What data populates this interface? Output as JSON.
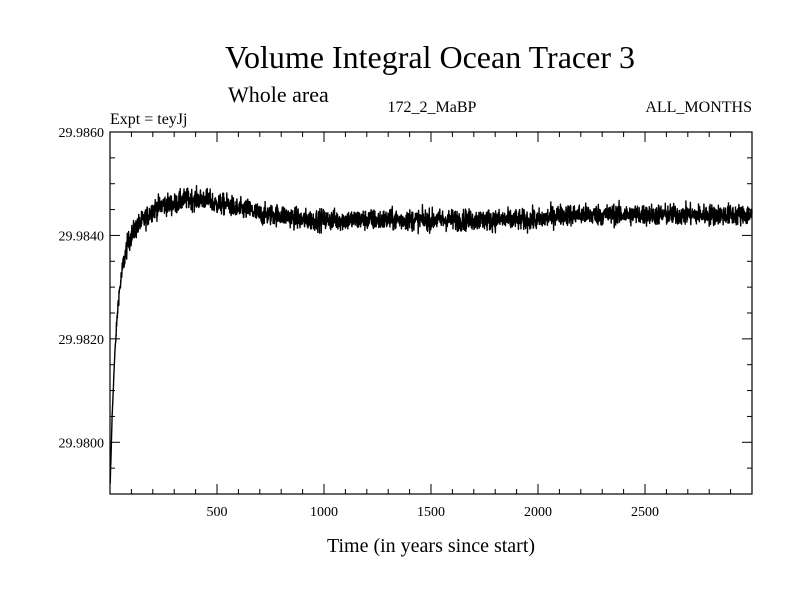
{
  "chart_data": {
    "type": "line",
    "title": "Volume Integral Ocean Tracer 3",
    "subtitle": "Whole area",
    "experiment_label": "Expt = teyJj",
    "run_label": "172_2_MaBP",
    "months_label": "ALL_MONTHS",
    "xlabel": "Time (in years since start)",
    "ylabel": "",
    "xlim": [
      0,
      3000
    ],
    "ylim": [
      29.979,
      29.986
    ],
    "x_ticks": [
      500,
      1000,
      1500,
      2000,
      2500
    ],
    "x_tick_labels": [
      "500",
      "1000",
      "1500",
      "2000",
      "2500"
    ],
    "y_ticks": [
      29.98,
      29.982,
      29.984,
      29.986
    ],
    "y_tick_labels": [
      "29.9800",
      "29.9820",
      "29.9840",
      "29.9860"
    ],
    "grid": false,
    "series": [
      {
        "color": "#000000",
        "x": [
          1,
          10,
          20,
          30,
          40,
          60,
          80,
          100,
          130,
          160,
          200,
          250,
          300,
          350,
          400,
          450,
          500,
          550,
          600,
          650,
          700,
          800,
          900,
          1000,
          1100,
          1200,
          1300,
          1400,
          1500,
          1600,
          1700,
          1800,
          1900,
          2000,
          2100,
          2200,
          2300,
          2400,
          2500,
          2600,
          2700,
          2800,
          2900,
          3000
        ],
        "values": [
          29.9792,
          29.9805,
          29.9815,
          29.9822,
          29.9828,
          29.9834,
          29.9838,
          29.984,
          29.9842,
          29.9843,
          29.9845,
          29.9846,
          29.9846,
          29.9847,
          29.9847,
          29.9847,
          29.9846,
          29.9846,
          29.9845,
          29.9845,
          29.9844,
          29.9844,
          29.9843,
          29.9843,
          29.9843,
          29.9843,
          29.9843,
          29.9843,
          29.9843,
          29.9843,
          29.9843,
          29.9843,
          29.9843,
          29.9843,
          29.9844,
          29.9844,
          29.9844,
          29.9844,
          29.9844,
          29.9844,
          29.9844,
          29.9844,
          29.9844,
          29.9844
        ],
        "noise_amplitude": 0.00035
      }
    ]
  }
}
